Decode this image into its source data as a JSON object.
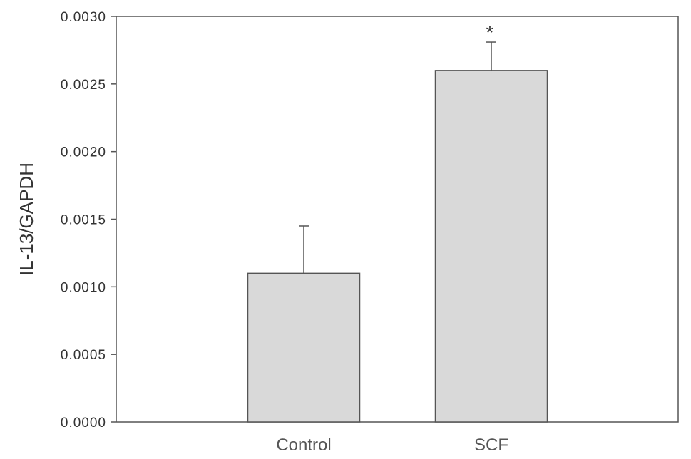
{
  "chart_data": {
    "type": "bar",
    "categories": [
      "Control",
      "SCF"
    ],
    "values": [
      0.0011,
      0.0026
    ],
    "error_bars": [
      0.00035,
      0.00021
    ],
    "annotations": [
      "",
      "*"
    ],
    "title": "",
    "xlabel": "",
    "ylabel": "IL-13/GAPDH",
    "ylim": [
      0,
      0.003
    ],
    "yticks": [
      "0.0000",
      "0.0005",
      "0.0010",
      "0.0015",
      "0.0020",
      "0.0025",
      "0.0030"
    ],
    "grid": false,
    "legend": "none",
    "colors": {
      "bar_fill": "#d9d9d9",
      "bar_stroke": "#555555",
      "axis": "#555555"
    }
  }
}
